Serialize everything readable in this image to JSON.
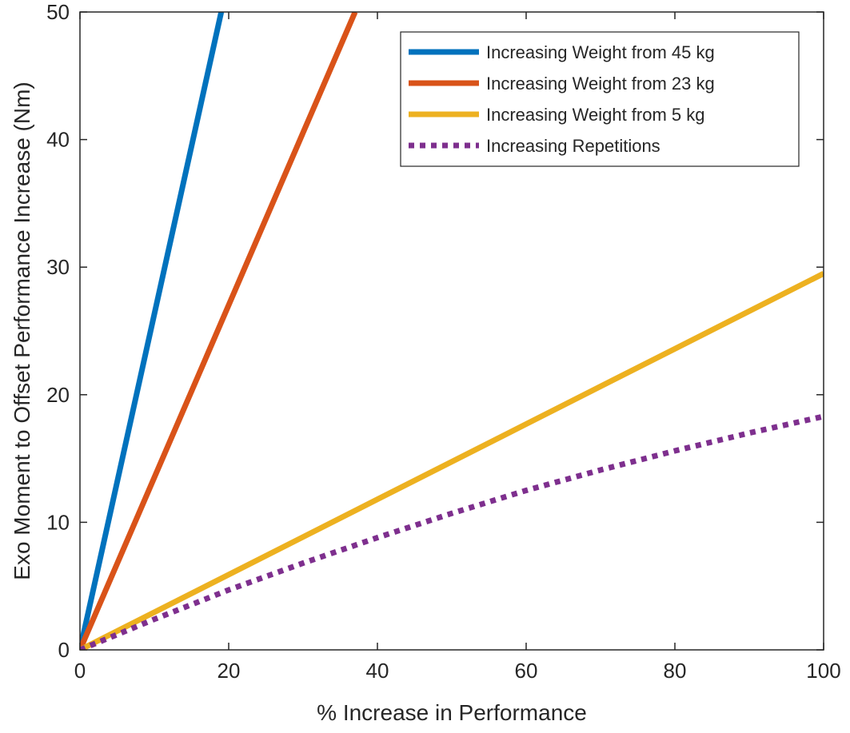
{
  "chart_data": {
    "type": "line",
    "title": "",
    "xlabel": "% Increase in Performance",
    "ylabel": "Exo Moment to Offset Performance Increase (Nm)",
    "xlim": [
      0,
      100
    ],
    "ylim": [
      0,
      50
    ],
    "xticks": [
      0,
      20,
      40,
      60,
      80,
      100
    ],
    "yticks": [
      0,
      10,
      20,
      30,
      40,
      50
    ],
    "xtick_labels": [
      "0",
      "20",
      "40",
      "60",
      "80",
      "100"
    ],
    "ytick_labels": [
      "0",
      "10",
      "20",
      "30",
      "40",
      "50"
    ],
    "grid": false,
    "box": true,
    "legend_location": "top-right",
    "series": [
      {
        "name": "Increasing Weight from 45 kg",
        "color": "#0072BD",
        "style": "solid",
        "x": [
          0,
          19
        ],
        "y": [
          0,
          50
        ]
      },
      {
        "name": "Increasing Weight from 23 kg",
        "color": "#D95319",
        "style": "solid",
        "x": [
          0,
          37
        ],
        "y": [
          0,
          50
        ]
      },
      {
        "name": "Increasing Weight from 5 kg",
        "color": "#EDB120",
        "style": "solid",
        "x": [
          0,
          20,
          40,
          60,
          80,
          100
        ],
        "y": [
          0,
          5.9,
          11.8,
          17.7,
          23.6,
          29.5
        ]
      },
      {
        "name": "Increasing Repetitions",
        "color": "#7E2F8E",
        "style": "dotted",
        "x": [
          0,
          10,
          20,
          30,
          40,
          50,
          60,
          70,
          80,
          90,
          100
        ],
        "y": [
          0,
          2.4,
          4.7,
          6.8,
          8.8,
          10.7,
          12.5,
          14.1,
          15.6,
          17.0,
          18.3
        ]
      }
    ]
  }
}
